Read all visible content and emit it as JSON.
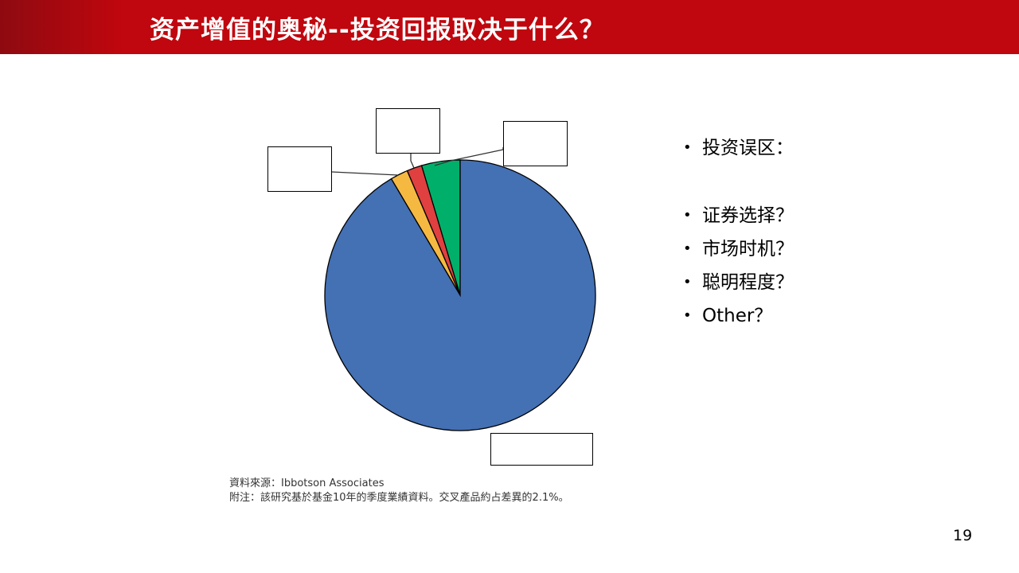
{
  "title": "资产增值的奥秘--投资回报取决于什么？",
  "chart_data": {
    "type": "pie",
    "title": "",
    "slices": [
      {
        "label": "",
        "value": 4.6,
        "color": "#00b06a"
      },
      {
        "label": "",
        "value": 1.8,
        "color": "#e04040"
      },
      {
        "label": "",
        "value": 2.1,
        "color": "#f5b942"
      },
      {
        "label": "",
        "value": 91.5,
        "color": "#4470b4"
      }
    ],
    "start": "top",
    "direction": "counterclockwise",
    "label_boxes_empty": true
  },
  "bullets": {
    "heading": "投资误区：",
    "items": [
      "证券选择？",
      "市场时机？",
      "聪明程度？",
      "Other？"
    ]
  },
  "source": {
    "line1": "資料來源：Ibbotson Associates",
    "line2": "附注：該研究基於基金10年的季度業績資料。交叉產品約占差異的2.1%。"
  },
  "page_number": "19"
}
